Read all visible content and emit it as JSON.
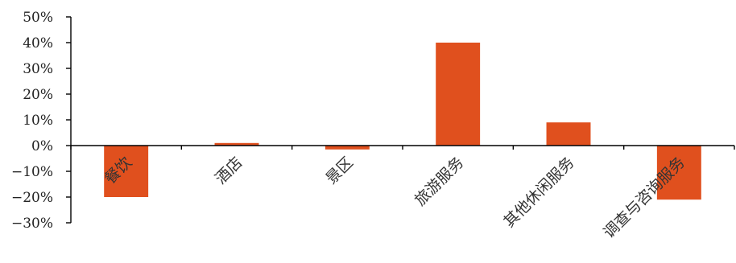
{
  "chart_data": {
    "type": "bar",
    "categories": [
      "餐饮",
      "酒店",
      "景区",
      "旅游服务",
      "其他休闲服务",
      "调查与咨询服务"
    ],
    "series": [
      {
        "values": [
          -20,
          1,
          -1.5,
          40,
          9,
          -21
        ]
      }
    ],
    "ylim": [
      -30,
      50
    ],
    "yticks": [
      -30,
      -20,
      -10,
      0,
      10,
      20,
      30,
      40,
      50
    ],
    "ytick_labels": [
      "−30%",
      "−20%",
      "−10%",
      "0%",
      "10%",
      "20%",
      "30%",
      "40%",
      "50%"
    ],
    "title": "",
    "xlabel": "",
    "ylabel": "",
    "grid": false,
    "legend": "none",
    "bar_color": "#E0501E"
  }
}
